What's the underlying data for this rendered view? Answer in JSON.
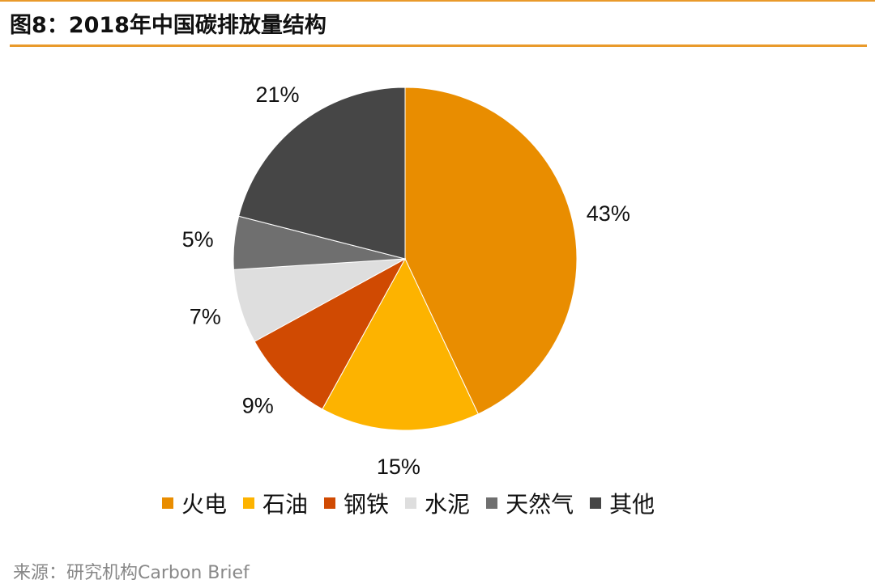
{
  "title": "图8：2018年中国碳排放量结构",
  "source": "来源：研究机构Carbon Brief",
  "chart_data": {
    "type": "pie",
    "title": "图8：2018年中国碳排放量结构",
    "slices": [
      {
        "name": "火电",
        "value": 43,
        "label": "43%",
        "color": "#E98D00"
      },
      {
        "name": "石油",
        "value": 15,
        "label": "15%",
        "color": "#FDB300"
      },
      {
        "name": "钢铁",
        "value": 9,
        "label": "9%",
        "color": "#D04A02"
      },
      {
        "name": "水泥",
        "value": 7,
        "label": "7%",
        "color": "#DEDEDE"
      },
      {
        "name": "天然气",
        "value": 5,
        "label": "5%",
        "color": "#6F6F6F"
      },
      {
        "name": "其他",
        "value": 21,
        "label": "21%",
        "color": "#464646"
      }
    ],
    "legend_position": "bottom"
  }
}
